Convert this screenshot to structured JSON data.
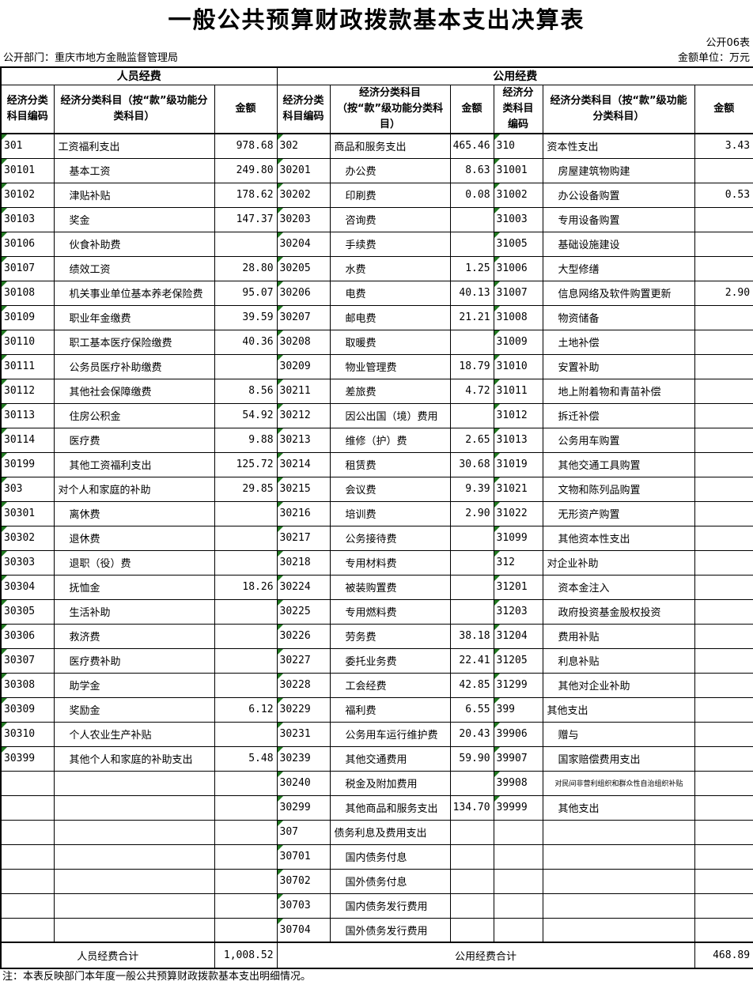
{
  "doc": {
    "title": "一般公共预算财政拨款基本支出决算表",
    "table_code": "公开06表",
    "department_label": "公开部门：重庆市地方金融监督管理局",
    "unit_label": "金额单位：万元",
    "note": "注：本表反映部门本年度一般公共预算财政拨款基本支出明细情况。"
  },
  "colors": {
    "triangle_green": "#217821",
    "border": "#000000",
    "background": "#ffffff"
  },
  "table": {
    "group_headers": [
      "人员经费",
      "公用经费"
    ],
    "column_headers": [
      "经济分类科目编码",
      "经济分类科目（按“款”级功能分类科目）",
      "金额"
    ],
    "summary": {
      "personnel_label": "人员经费合计",
      "personnel_total": "1,008.52",
      "public_label": "公用经费合计",
      "public_total": "468.89"
    },
    "rows": [
      [
        {
          "code": "301",
          "name": "工资福利支出",
          "amount": "978.68",
          "level": 0
        },
        {
          "code": "302",
          "name": "商品和服务支出",
          "amount": "465.46",
          "level": 0
        },
        {
          "code": "310",
          "name": "资本性支出",
          "amount": "3.43",
          "level": 0
        }
      ],
      [
        {
          "code": "30101",
          "name": "基本工资",
          "amount": "249.80",
          "level": 1
        },
        {
          "code": "30201",
          "name": "办公费",
          "amount": "8.63",
          "level": 1
        },
        {
          "code": "31001",
          "name": "房屋建筑物购建",
          "amount": "",
          "level": 1
        }
      ],
      [
        {
          "code": "30102",
          "name": "津贴补贴",
          "amount": "178.62",
          "level": 1
        },
        {
          "code": "30202",
          "name": "印刷费",
          "amount": "0.08",
          "level": 1
        },
        {
          "code": "31002",
          "name": "办公设备购置",
          "amount": "0.53",
          "level": 1
        }
      ],
      [
        {
          "code": "30103",
          "name": "奖金",
          "amount": "147.37",
          "level": 1
        },
        {
          "code": "30203",
          "name": "咨询费",
          "amount": "",
          "level": 1
        },
        {
          "code": "31003",
          "name": "专用设备购置",
          "amount": "",
          "level": 1
        }
      ],
      [
        {
          "code": "30106",
          "name": "伙食补助费",
          "amount": "",
          "level": 1
        },
        {
          "code": "30204",
          "name": "手续费",
          "amount": "",
          "level": 1
        },
        {
          "code": "31005",
          "name": "基础设施建设",
          "amount": "",
          "level": 1
        }
      ],
      [
        {
          "code": "30107",
          "name": "绩效工资",
          "amount": "28.80",
          "level": 1
        },
        {
          "code": "30205",
          "name": "水费",
          "amount": "1.25",
          "level": 1
        },
        {
          "code": "31006",
          "name": "大型修缮",
          "amount": "",
          "level": 1
        }
      ],
      [
        {
          "code": "30108",
          "name": "机关事业单位基本养老保险费",
          "amount": "95.07",
          "level": 1
        },
        {
          "code": "30206",
          "name": "电费",
          "amount": "40.13",
          "level": 1
        },
        {
          "code": "31007",
          "name": "信息网络及软件购置更新",
          "amount": "2.90",
          "level": 1
        }
      ],
      [
        {
          "code": "30109",
          "name": "职业年金缴费",
          "amount": "39.59",
          "level": 1
        },
        {
          "code": "30207",
          "name": "邮电费",
          "amount": "21.21",
          "level": 1
        },
        {
          "code": "31008",
          "name": "物资储备",
          "amount": "",
          "level": 1
        }
      ],
      [
        {
          "code": "30110",
          "name": "职工基本医疗保险缴费",
          "amount": "40.36",
          "level": 1
        },
        {
          "code": "30208",
          "name": "取暖费",
          "amount": "",
          "level": 1
        },
        {
          "code": "31009",
          "name": "土地补偿",
          "amount": "",
          "level": 1
        }
      ],
      [
        {
          "code": "30111",
          "name": "公务员医疗补助缴费",
          "amount": "",
          "level": 1
        },
        {
          "code": "30209",
          "name": "物业管理费",
          "amount": "18.79",
          "level": 1
        },
        {
          "code": "31010",
          "name": "安置补助",
          "amount": "",
          "level": 1
        }
      ],
      [
        {
          "code": "30112",
          "name": "其他社会保障缴费",
          "amount": "8.56",
          "level": 1
        },
        {
          "code": "30211",
          "name": "差旅费",
          "amount": "4.72",
          "level": 1
        },
        {
          "code": "31011",
          "name": "地上附着物和青苗补偿",
          "amount": "",
          "level": 1
        }
      ],
      [
        {
          "code": "30113",
          "name": "住房公积金",
          "amount": "54.92",
          "level": 1
        },
        {
          "code": "30212",
          "name": "因公出国（境）费用",
          "amount": "",
          "level": 1
        },
        {
          "code": "31012",
          "name": "拆迁补偿",
          "amount": "",
          "level": 1
        }
      ],
      [
        {
          "code": "30114",
          "name": "医疗费",
          "amount": "9.88",
          "level": 1
        },
        {
          "code": "30213",
          "name": "维修（护）费",
          "amount": "2.65",
          "level": 1
        },
        {
          "code": "31013",
          "name": "公务用车购置",
          "amount": "",
          "level": 1
        }
      ],
      [
        {
          "code": "30199",
          "name": "其他工资福利支出",
          "amount": "125.72",
          "level": 1
        },
        {
          "code": "30214",
          "name": "租赁费",
          "amount": "30.68",
          "level": 1
        },
        {
          "code": "31019",
          "name": "其他交通工具购置",
          "amount": "",
          "level": 1
        }
      ],
      [
        {
          "code": "303",
          "name": "对个人和家庭的补助",
          "amount": "29.85",
          "level": 0
        },
        {
          "code": "30215",
          "name": "会议费",
          "amount": "9.39",
          "level": 1
        },
        {
          "code": "31021",
          "name": "文物和陈列品购置",
          "amount": "",
          "level": 1
        }
      ],
      [
        {
          "code": "30301",
          "name": "离休费",
          "amount": "",
          "level": 1
        },
        {
          "code": "30216",
          "name": "培训费",
          "amount": "2.90",
          "level": 1
        },
        {
          "code": "31022",
          "name": "无形资产购置",
          "amount": "",
          "level": 1
        }
      ],
      [
        {
          "code": "30302",
          "name": "退休费",
          "amount": "",
          "level": 1
        },
        {
          "code": "30217",
          "name": "公务接待费",
          "amount": "",
          "level": 1
        },
        {
          "code": "31099",
          "name": "其他资本性支出",
          "amount": "",
          "level": 1
        }
      ],
      [
        {
          "code": "30303",
          "name": "退职（役）费",
          "amount": "",
          "level": 1
        },
        {
          "code": "30218",
          "name": "专用材料费",
          "amount": "",
          "level": 1
        },
        {
          "code": "312",
          "name": "对企业补助",
          "amount": "",
          "level": 0
        }
      ],
      [
        {
          "code": "30304",
          "name": "抚恤金",
          "amount": "18.26",
          "level": 1
        },
        {
          "code": "30224",
          "name": "被装购置费",
          "amount": "",
          "level": 1
        },
        {
          "code": "31201",
          "name": "资本金注入",
          "amount": "",
          "level": 1
        }
      ],
      [
        {
          "code": "30305",
          "name": "生活补助",
          "amount": "",
          "level": 1
        },
        {
          "code": "30225",
          "name": "专用燃料费",
          "amount": "",
          "level": 1
        },
        {
          "code": "31203",
          "name": "政府投资基金股权投资",
          "amount": "",
          "level": 1
        }
      ],
      [
        {
          "code": "30306",
          "name": "救济费",
          "amount": "",
          "level": 1
        },
        {
          "code": "30226",
          "name": "劳务费",
          "amount": "38.18",
          "level": 1
        },
        {
          "code": "31204",
          "name": "费用补贴",
          "amount": "",
          "level": 1
        }
      ],
      [
        {
          "code": "30307",
          "name": "医疗费补助",
          "amount": "",
          "level": 1
        },
        {
          "code": "30227",
          "name": "委托业务费",
          "amount": "22.41",
          "level": 1
        },
        {
          "code": "31205",
          "name": "利息补贴",
          "amount": "",
          "level": 1
        }
      ],
      [
        {
          "code": "30308",
          "name": "助学金",
          "amount": "",
          "level": 1
        },
        {
          "code": "30228",
          "name": "工会经费",
          "amount": "42.85",
          "level": 1
        },
        {
          "code": "31299",
          "name": "其他对企业补助",
          "amount": "",
          "level": 1
        }
      ],
      [
        {
          "code": "30309",
          "name": "奖励金",
          "amount": "6.12",
          "level": 1
        },
        {
          "code": "30229",
          "name": "福利费",
          "amount": "6.55",
          "level": 1
        },
        {
          "code": "399",
          "name": "其他支出",
          "amount": "",
          "level": 0
        }
      ],
      [
        {
          "code": "30310",
          "name": "个人农业生产补贴",
          "amount": "",
          "level": 1
        },
        {
          "code": "30231",
          "name": "公务用车运行维护费",
          "amount": "20.43",
          "level": 1
        },
        {
          "code": "39906",
          "name": "赠与",
          "amount": "",
          "level": 1
        }
      ],
      [
        {
          "code": "30399",
          "name": "其他个人和家庭的补助支出",
          "amount": "5.48",
          "level": 1
        },
        {
          "code": "30239",
          "name": "其他交通费用",
          "amount": "59.90",
          "level": 1
        },
        {
          "code": "39907",
          "name": "国家赔偿费用支出",
          "amount": "",
          "level": 1
        }
      ],
      [
        null,
        {
          "code": "30240",
          "name": "税金及附加费用",
          "amount": "",
          "level": 1
        },
        {
          "code": "39908",
          "name": "对民间非营利组织和群众性自治组织补贴",
          "amount": "",
          "level": 1,
          "small": true
        }
      ],
      [
        null,
        {
          "code": "30299",
          "name": "其他商品和服务支出",
          "amount": "134.70",
          "level": 1
        },
        {
          "code": "39999",
          "name": "其他支出",
          "amount": "",
          "level": 1
        }
      ],
      [
        null,
        {
          "code": "307",
          "name": "债务利息及费用支出",
          "amount": "",
          "level": 0
        },
        null
      ],
      [
        null,
        {
          "code": "30701",
          "name": "国内债务付息",
          "amount": "",
          "level": 1
        },
        null
      ],
      [
        null,
        {
          "code": "30702",
          "name": "国外债务付息",
          "amount": "",
          "level": 1
        },
        null
      ],
      [
        null,
        {
          "code": "30703",
          "name": "国内债务发行费用",
          "amount": "",
          "level": 1
        },
        null
      ],
      [
        null,
        {
          "code": "30704",
          "name": "国外债务发行费用",
          "amount": "",
          "level": 1
        },
        null
      ]
    ]
  }
}
